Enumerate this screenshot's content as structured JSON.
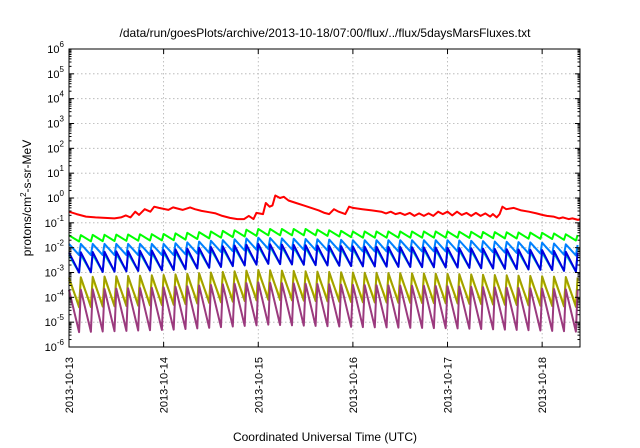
{
  "chart_data": {
    "type": "line",
    "title": "/data/run/goesPlots/archive/2013-10-18/07:00/flux/../flux/5daysMarsFluxes.txt",
    "xlabel": "Coordinated Universal Time (UTC)",
    "ylabel": {
      "base": "protons/cm",
      "sup": "2",
      "rest": "-s-sr-MeV"
    },
    "y_scale": "log",
    "ylim_exponent": [
      -6,
      6
    ],
    "y_ticks": [
      {
        "base": "10",
        "exp": "-6"
      },
      {
        "base": "10",
        "exp": "-5"
      },
      {
        "base": "10",
        "exp": "-4"
      },
      {
        "base": "10",
        "exp": "-3"
      },
      {
        "base": "10",
        "exp": "-2"
      },
      {
        "base": "10",
        "exp": "-1"
      },
      {
        "base": "10",
        "exp": "0"
      },
      {
        "base": "10",
        "exp": "1"
      },
      {
        "base": "10",
        "exp": "2"
      },
      {
        "base": "10",
        "exp": "3"
      },
      {
        "base": "10",
        "exp": "4"
      },
      {
        "base": "10",
        "exp": "5"
      },
      {
        "base": "10",
        "exp": "6"
      }
    ],
    "xlim_days": [
      0,
      5.4
    ],
    "x_ticks": [
      "2013-10-13",
      "2013-10-14",
      "2013-10-15",
      "2013-10-16",
      "2013-10-17",
      "2013-10-18"
    ],
    "grid": true,
    "series": [
      {
        "color": "#ff0000",
        "values_log10": [
          [
            0.0,
            -0.55
          ],
          [
            0.08,
            -0.65
          ],
          [
            0.18,
            -0.75
          ],
          [
            0.28,
            -0.78
          ],
          [
            0.38,
            -0.8
          ],
          [
            0.48,
            -0.82
          ],
          [
            0.55,
            -0.78
          ],
          [
            0.6,
            -0.7
          ],
          [
            0.65,
            -0.78
          ],
          [
            0.7,
            -0.55
          ],
          [
            0.74,
            -0.68
          ],
          [
            0.8,
            -0.45
          ],
          [
            0.86,
            -0.55
          ],
          [
            0.9,
            -0.35
          ],
          [
            0.95,
            -0.4
          ],
          [
            1.05,
            -0.48
          ],
          [
            1.1,
            -0.38
          ],
          [
            1.2,
            -0.48
          ],
          [
            1.28,
            -0.38
          ],
          [
            1.33,
            -0.45
          ],
          [
            1.4,
            -0.52
          ],
          [
            1.48,
            -0.57
          ],
          [
            1.55,
            -0.62
          ],
          [
            1.62,
            -0.72
          ],
          [
            1.7,
            -0.8
          ],
          [
            1.78,
            -0.85
          ],
          [
            1.85,
            -0.85
          ],
          [
            1.9,
            -0.72
          ],
          [
            1.95,
            -0.85
          ],
          [
            1.98,
            -0.6
          ],
          [
            2.05,
            -0.65
          ],
          [
            2.08,
            -0.2
          ],
          [
            2.12,
            -0.35
          ],
          [
            2.15,
            -0.3
          ],
          [
            2.18,
            0.1
          ],
          [
            2.23,
            0.0
          ],
          [
            2.27,
            0.05
          ],
          [
            2.32,
            -0.1
          ],
          [
            2.4,
            -0.2
          ],
          [
            2.48,
            -0.3
          ],
          [
            2.56,
            -0.4
          ],
          [
            2.64,
            -0.5
          ],
          [
            2.7,
            -0.6
          ],
          [
            2.75,
            -0.65
          ],
          [
            2.8,
            -0.45
          ],
          [
            2.85,
            -0.55
          ],
          [
            2.92,
            -0.65
          ],
          [
            2.96,
            -0.35
          ],
          [
            3.0,
            -0.4
          ],
          [
            3.1,
            -0.45
          ],
          [
            3.2,
            -0.5
          ],
          [
            3.3,
            -0.55
          ],
          [
            3.35,
            -0.62
          ],
          [
            3.4,
            -0.55
          ],
          [
            3.45,
            -0.65
          ],
          [
            3.5,
            -0.6
          ],
          [
            3.55,
            -0.68
          ],
          [
            3.6,
            -0.6
          ],
          [
            3.65,
            -0.72
          ],
          [
            3.7,
            -0.62
          ],
          [
            3.75,
            -0.72
          ],
          [
            3.8,
            -0.62
          ],
          [
            3.85,
            -0.72
          ],
          [
            3.9,
            -0.55
          ],
          [
            3.95,
            -0.65
          ],
          [
            4.0,
            -0.55
          ],
          [
            4.05,
            -0.7
          ],
          [
            4.1,
            -0.55
          ],
          [
            4.15,
            -0.68
          ],
          [
            4.2,
            -0.6
          ],
          [
            4.25,
            -0.72
          ],
          [
            4.3,
            -0.6
          ],
          [
            4.35,
            -0.72
          ],
          [
            4.4,
            -0.62
          ],
          [
            4.45,
            -0.75
          ],
          [
            4.48,
            -0.65
          ],
          [
            4.52,
            -0.78
          ],
          [
            4.55,
            -0.65
          ],
          [
            4.58,
            -0.35
          ],
          [
            4.62,
            -0.45
          ],
          [
            4.7,
            -0.4
          ],
          [
            4.78,
            -0.5
          ],
          [
            4.86,
            -0.55
          ],
          [
            4.94,
            -0.62
          ],
          [
            5.0,
            -0.68
          ],
          [
            5.05,
            -0.72
          ],
          [
            5.12,
            -0.75
          ],
          [
            5.18,
            -0.82
          ],
          [
            5.22,
            -0.78
          ],
          [
            5.28,
            -0.85
          ],
          [
            5.32,
            -0.82
          ],
          [
            5.38,
            -0.88
          ],
          [
            5.4,
            -0.85
          ]
        ]
      },
      {
        "color": "#00ff00",
        "start_log10": -1.6,
        "drop": 0.25,
        "trend": [
          [
            0,
            -1.6
          ],
          [
            1,
            -1.55
          ],
          [
            2,
            -1.35
          ],
          [
            2.5,
            -1.35
          ],
          [
            3,
            -1.45
          ],
          [
            4,
            -1.45
          ],
          [
            5,
            -1.5
          ],
          [
            5.4,
            -1.6
          ]
        ]
      },
      {
        "color": "#0080ff",
        "start_log10": -2.0,
        "drop": 0.45,
        "trend": [
          [
            0,
            -1.95
          ],
          [
            1,
            -1.95
          ],
          [
            2,
            -1.7
          ],
          [
            2.5,
            -1.75
          ],
          [
            3,
            -1.8
          ],
          [
            4,
            -1.8
          ],
          [
            5,
            -1.9
          ],
          [
            5.4,
            -2.0
          ]
        ]
      },
      {
        "color": "#00c8c8",
        "start_log10": -2.3,
        "drop": 0.7,
        "trend": [
          [
            0,
            -2.4
          ],
          [
            1,
            -2.3
          ],
          [
            2,
            -2.05
          ],
          [
            2.5,
            -2.1
          ],
          [
            3,
            -2.15
          ],
          [
            4,
            -2.2
          ],
          [
            5,
            -2.3
          ],
          [
            5.4,
            -2.4
          ]
        ]
      },
      {
        "color": "#0000e0",
        "start_log10": -2.1,
        "drop": 0.8,
        "trend": [
          [
            0,
            -2.3
          ],
          [
            1,
            -2.2
          ],
          [
            2,
            -1.95
          ],
          [
            2.5,
            -2.0
          ],
          [
            3,
            -2.05
          ],
          [
            4,
            -2.1
          ],
          [
            5,
            -2.2
          ],
          [
            5.4,
            -2.3
          ]
        ]
      },
      {
        "color": "#ffff00",
        "start_log10": -3.3,
        "drop": 1.0,
        "trend": [
          [
            0,
            -3.4
          ],
          [
            1,
            -3.3
          ],
          [
            2,
            -3.1
          ],
          [
            2.5,
            -3.15
          ],
          [
            3,
            -3.2
          ],
          [
            4,
            -3.25
          ],
          [
            5,
            -3.35
          ],
          [
            5.4,
            -3.4
          ]
        ]
      },
      {
        "color": "#a0a000",
        "start_log10": -3.2,
        "drop": 1.2,
        "trend": [
          [
            0,
            -3.3
          ],
          [
            1,
            -3.2
          ],
          [
            2,
            -3.0
          ],
          [
            2.5,
            -3.05
          ],
          [
            3,
            -3.1
          ],
          [
            4,
            -3.15
          ],
          [
            5,
            -3.25
          ],
          [
            5.4,
            -3.3
          ]
        ]
      },
      {
        "color": "#9b3a7e",
        "start_log10": -3.6,
        "drop": 1.7,
        "trend": [
          [
            0,
            -3.8
          ],
          [
            1,
            -3.7
          ],
          [
            2,
            -3.5
          ],
          [
            2.5,
            -3.55
          ],
          [
            3,
            -3.6
          ],
          [
            4,
            -3.65
          ],
          [
            5,
            -3.75
          ],
          [
            5.4,
            -3.8
          ]
        ]
      }
    ],
    "sawtooth_period_days": 0.125
  }
}
